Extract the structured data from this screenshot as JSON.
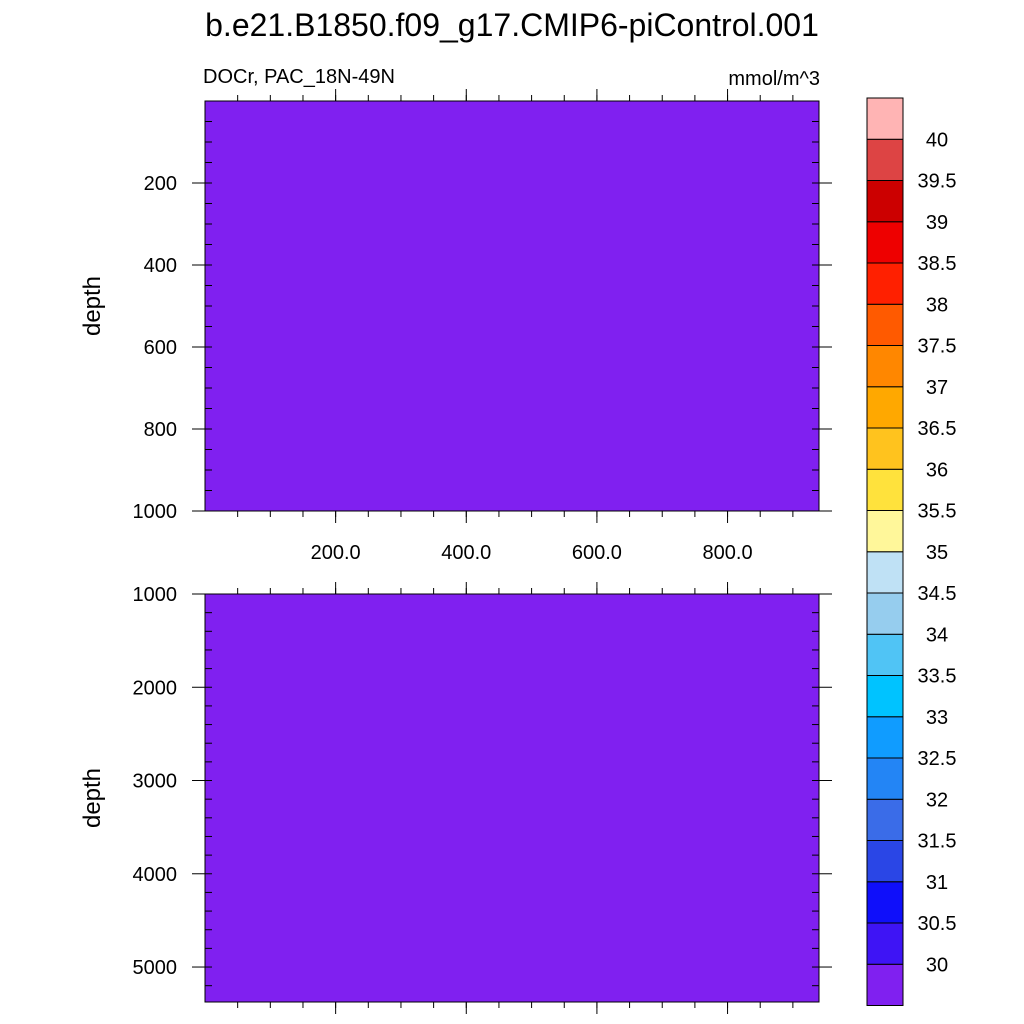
{
  "chart_data": {
    "type": "heatmap",
    "title": "b.e21.B1850.f09_g17.CMIP6-piControl.001",
    "left_subtitle": "DOCr, PAC_18N-49N",
    "right_subtitle": "mmol/m^3",
    "fill_color": "#8020f0",
    "panels": [
      {
        "id": "upper",
        "ylabel": "depth",
        "ylim": [
          0,
          1000
        ],
        "xlim": [
          0,
          940
        ],
        "yticks": [
          200,
          400,
          600,
          800,
          1000
        ],
        "ytick_labels": [
          "200",
          "400",
          "600",
          "800",
          "1000"
        ],
        "yminor_step": 50,
        "xticks": [
          200,
          400,
          600,
          800
        ],
        "xtick_labels": [
          "200.0",
          "400.0",
          "600.0",
          "800.0"
        ],
        "xminor_step": 50,
        "value": 30
      },
      {
        "id": "lower",
        "ylabel": "depth",
        "ylim": [
          1000,
          5375
        ],
        "xlim": [
          0,
          940
        ],
        "yticks": [
          1000,
          2000,
          3000,
          4000,
          5000
        ],
        "ytick_labels": [
          "1000",
          "2000",
          "3000",
          "4000",
          "5000"
        ],
        "yminor_step": 200,
        "xticks": [
          200,
          400,
          600,
          800
        ],
        "xtick_labels": [],
        "xminor_step": 50,
        "value": 30
      }
    ],
    "colorbar": {
      "levels": [
        "30",
        "30.5",
        "31",
        "31.5",
        "32",
        "32.5",
        "33",
        "33.5",
        "34",
        "34.5",
        "35",
        "35.5",
        "36",
        "36.5",
        "37",
        "37.5",
        "38",
        "38.5",
        "39",
        "39.5",
        "40"
      ],
      "colors": [
        "#8020f0",
        "#3e14f5",
        "#0f0ffa",
        "#2a46e6",
        "#3a6ce8",
        "#2385f5",
        "#109cff",
        "#00c3ff",
        "#50c4f5",
        "#96cdee",
        "#bfe1f5",
        "#fff79a",
        "#ffe23c",
        "#ffc31e",
        "#ffa800",
        "#ff8700",
        "#ff5a00",
        "#ff2000",
        "#ee0000",
        "#cc0000",
        "#dd4444",
        "#ffb4b4"
      ]
    }
  }
}
